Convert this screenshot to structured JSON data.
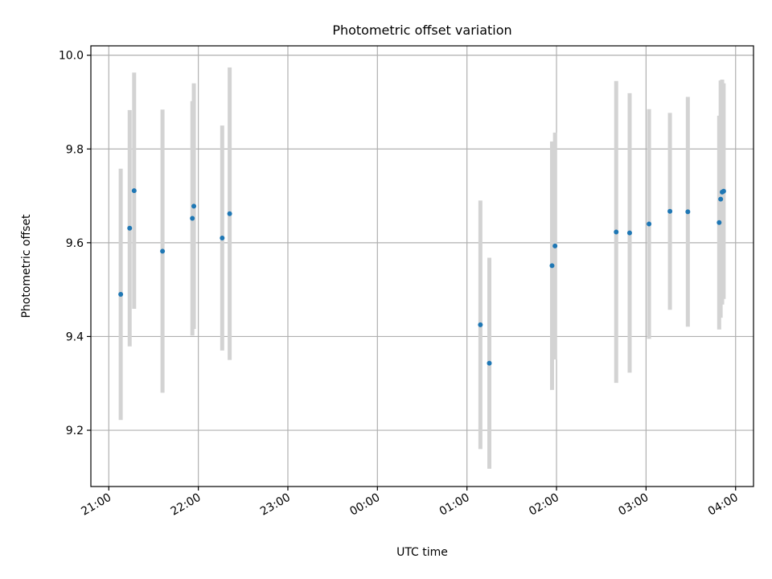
{
  "chart_data": {
    "type": "scatter",
    "title": "Photometric offset variation",
    "xlabel": "UTC time",
    "ylabel": "Photometric offset",
    "x_unit": "UTC hours after 20:00",
    "xlim": [
      0.8,
      8.2
    ],
    "ylim": [
      9.08,
      10.02
    ],
    "xticks": [
      {
        "value": 1,
        "label": "21:00"
      },
      {
        "value": 2,
        "label": "22:00"
      },
      {
        "value": 3,
        "label": "23:00"
      },
      {
        "value": 4,
        "label": "00:00"
      },
      {
        "value": 5,
        "label": "01:00"
      },
      {
        "value": 6,
        "label": "02:00"
      },
      {
        "value": 7,
        "label": "03:00"
      },
      {
        "value": 8,
        "label": "04:00"
      }
    ],
    "yticks": [
      {
        "value": 9.2,
        "label": "9.2"
      },
      {
        "value": 9.4,
        "label": "9.4"
      },
      {
        "value": 9.6,
        "label": "9.6"
      },
      {
        "value": 9.8,
        "label": "9.8"
      },
      {
        "value": 10.0,
        "label": "10.0"
      }
    ],
    "grid": true,
    "marker_color": "#1f77b4",
    "errorbar_color": "#d3d3d3",
    "points": [
      {
        "time": "21:08",
        "y": 9.49,
        "err": 0.268
      },
      {
        "time": "21:14",
        "y": 9.631,
        "err": 0.252
      },
      {
        "time": "21:17",
        "y": 9.711,
        "err": 0.252
      },
      {
        "time": "21:36",
        "y": 9.582,
        "err": 0.302
      },
      {
        "time": "21:56",
        "y": 9.652,
        "err": 0.25
      },
      {
        "time": "21:57",
        "y": 9.678,
        "err": 0.262
      },
      {
        "time": "22:16",
        "y": 9.61,
        "err": 0.24
      },
      {
        "time": "22:21",
        "y": 9.662,
        "err": 0.312
      },
      {
        "time": "01:09",
        "y": 9.425,
        "err": 0.265
      },
      {
        "time": "01:15",
        "y": 9.343,
        "err": 0.225
      },
      {
        "time": "01:57",
        "y": 9.551,
        "err": 0.265
      },
      {
        "time": "01:59",
        "y": 9.593,
        "err": 0.242
      },
      {
        "time": "02:40",
        "y": 9.623,
        "err": 0.322
      },
      {
        "time": "02:49",
        "y": 9.621,
        "err": 0.298
      },
      {
        "time": "03:02",
        "y": 9.64,
        "err": 0.245
      },
      {
        "time": "03:16",
        "y": 9.667,
        "err": 0.21
      },
      {
        "time": "03:28",
        "y": 9.666,
        "err": 0.245
      },
      {
        "time": "03:49",
        "y": 9.643,
        "err": 0.228
      },
      {
        "time": "03:50",
        "y": 9.693,
        "err": 0.253
      },
      {
        "time": "03:51",
        "y": 9.708,
        "err": 0.24
      },
      {
        "time": "03:52",
        "y": 9.71,
        "err": 0.23
      }
    ]
  }
}
